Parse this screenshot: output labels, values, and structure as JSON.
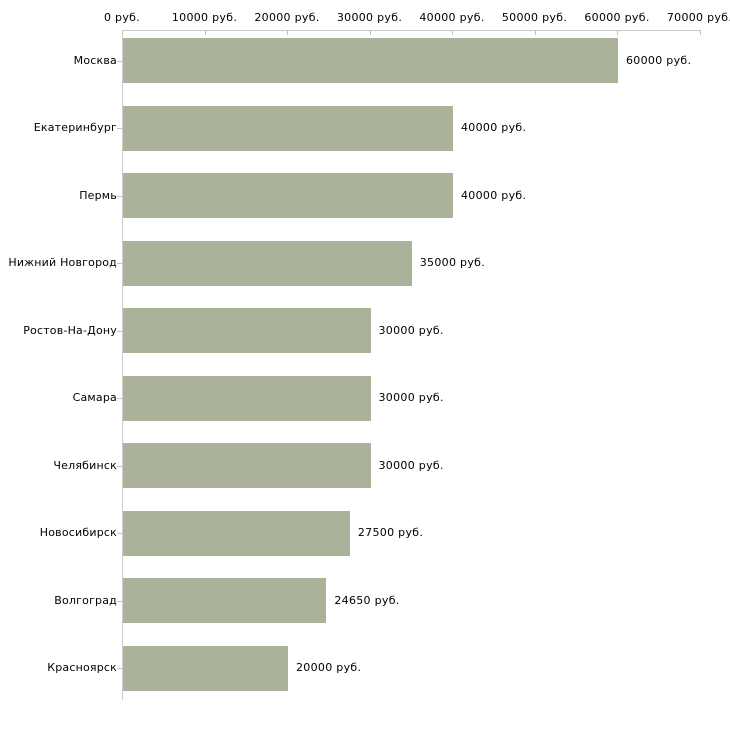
{
  "chart_data": {
    "type": "bar",
    "orientation": "horizontal",
    "title": "",
    "xlabel": "",
    "ylabel": "",
    "unit": "руб.",
    "categories": [
      "Москва",
      "Екатеринбург",
      "Пермь",
      "Нижний Новгород",
      "Ростов-На-Дону",
      "Самара",
      "Челябинск",
      "Новосибирск",
      "Волгоград",
      "Красноярск"
    ],
    "values": [
      60000,
      40000,
      40000,
      35000,
      30000,
      30000,
      30000,
      27500,
      24650,
      20000
    ],
    "value_labels": [
      "60000 руб.",
      "40000 руб.",
      "40000 руб.",
      "35000 руб.",
      "30000 руб.",
      "30000 руб.",
      "30000 руб.",
      "27500 руб.",
      "24650 руб.",
      "20000 руб."
    ],
    "x_axis": {
      "position": "top",
      "range": [
        0,
        70000
      ],
      "ticks": [
        0,
        10000,
        20000,
        30000,
        40000,
        50000,
        60000,
        70000
      ],
      "tick_labels": [
        "0 руб.",
        "10000 руб.",
        "20000 руб.",
        "30000 руб.",
        "40000 руб.",
        "50000 руб.",
        "60000 руб.",
        "70000 руб."
      ]
    },
    "grid": false,
    "legend": false,
    "colors": {
      "bar": "#aab29a",
      "axis_line": "#cccccc",
      "tick": "#c3c7a3",
      "text": "#000000",
      "background": "#ffffff"
    }
  }
}
